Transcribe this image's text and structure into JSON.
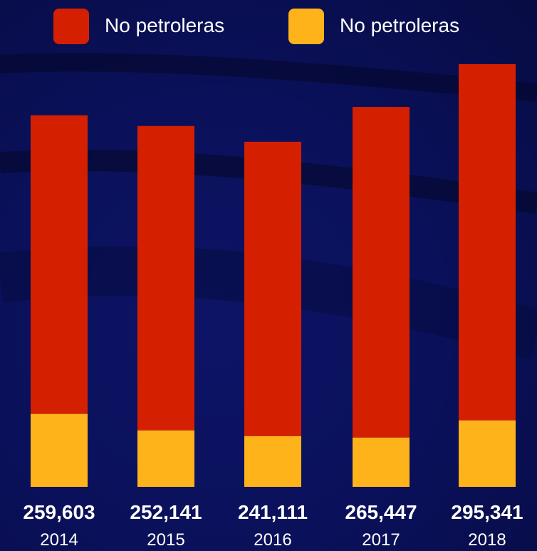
{
  "chart_data": {
    "type": "bar",
    "stacked": true,
    "categories": [
      "2014",
      "2015",
      "2016",
      "2017",
      "2018"
    ],
    "totals": [
      "259,603",
      "252,141",
      "241,111",
      "265,447",
      "295,341"
    ],
    "series": [
      {
        "name": "No petroleras",
        "color": "#ffb31a",
        "values": [
          51000,
          39500,
          35500,
          34500,
          46500
        ]
      },
      {
        "name": "No petroleras",
        "color": "#d42000",
        "values": [
          208603,
          212641,
          205611,
          230947,
          248841
        ]
      }
    ],
    "ylim": [
      0,
      295341
    ],
    "legend": "top",
    "grid": false
  }
}
